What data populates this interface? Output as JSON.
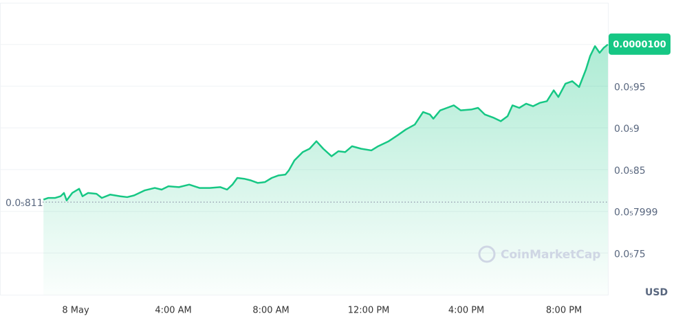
{
  "chart_data": {
    "type": "line",
    "color": "#16c784",
    "x": [
      -1.32,
      -1.13,
      -0.85,
      -0.62,
      -0.48,
      -0.37,
      -0.14,
      0.14,
      0.28,
      0.51,
      0.85,
      1.07,
      1.41,
      1.83,
      2.11,
      2.39,
      2.82,
      3.24,
      3.52,
      3.8,
      4.23,
      4.65,
      5.07,
      5.49,
      5.92,
      6.2,
      6.42,
      6.62,
      6.9,
      7.18,
      7.46,
      7.75,
      8.03,
      8.31,
      8.59,
      8.73,
      8.96,
      9.3,
      9.58,
      9.86,
      10.14,
      10.48,
      10.76,
      11.04,
      11.32,
      11.69,
      12.11,
      12.39,
      12.82,
      13.18,
      13.52,
      13.89,
      14.23,
      14.51,
      14.65,
      14.93,
      15.21,
      15.49,
      15.77,
      16.2,
      16.48,
      16.76,
      17.13,
      17.41,
      17.69,
      17.89,
      18.17,
      18.45,
      18.73,
      19.01,
      19.3,
      19.58,
      19.77,
      20.06,
      20.34,
      20.62,
      20.9,
      21.07,
      21.27,
      21.46,
      21.63,
      21.8
    ],
    "values": [
      8.14e-06,
      8.16e-06,
      8.16e-06,
      8.18e-06,
      8.22e-06,
      8.13e-06,
      8.22e-06,
      8.27e-06,
      8.18e-06,
      8.22e-06,
      8.21e-06,
      8.16e-06,
      8.2e-06,
      8.18e-06,
      8.17e-06,
      8.19e-06,
      8.25e-06,
      8.28e-06,
      8.26e-06,
      8.3e-06,
      8.29e-06,
      8.32e-06,
      8.28e-06,
      8.28e-06,
      8.29e-06,
      8.26e-06,
      8.32e-06,
      8.4e-06,
      8.39e-06,
      8.37e-06,
      8.34e-06,
      8.35e-06,
      8.4e-06,
      8.43e-06,
      8.44e-06,
      8.49e-06,
      8.61e-06,
      8.71e-06,
      8.75e-06,
      8.84e-06,
      8.75e-06,
      8.66e-06,
      8.72e-06,
      8.71e-06,
      8.78e-06,
      8.75e-06,
      8.73e-06,
      8.78e-06,
      8.84e-06,
      8.91e-06,
      8.98e-06,
      9.04e-06,
      9.19e-06,
      9.16e-06,
      9.11e-06,
      9.21e-06,
      9.24e-06,
      9.27e-06,
      9.21e-06,
      9.22e-06,
      9.24e-06,
      9.16e-06,
      9.12e-06,
      9.08e-06,
      9.14e-06,
      9.27e-06,
      9.24e-06,
      9.29e-06,
      9.26e-06,
      9.3e-06,
      9.32e-06,
      9.45e-06,
      9.37e-06,
      9.53e-06,
      9.56e-06,
      9.49e-06,
      9.7e-06,
      9.86e-06,
      9.98e-06,
      9.9e-06,
      9.96e-06,
      1e-05
    ],
    "xlim": [
      -3.1,
      21.8
    ],
    "xticks": [
      {
        "value": 0,
        "label": "8 May"
      },
      {
        "value": 4,
        "label": "4:00 AM"
      },
      {
        "value": 8,
        "label": "8:00 AM"
      },
      {
        "value": 12,
        "label": "12:00 PM"
      },
      {
        "value": 16,
        "label": "4:00 PM"
      },
      {
        "value": 20,
        "label": "8:00 PM"
      }
    ],
    "ylim": [
      7e-06,
      1.05e-05
    ],
    "yticks": [
      {
        "value": 9.5e-06,
        "label": "0.0₅95"
      },
      {
        "value": 9e-06,
        "label": "0.0₅9"
      },
      {
        "value": 8.5e-06,
        "label": "0.0₅85"
      },
      {
        "value": 7.999e-06,
        "label": "0.0₅7999"
      },
      {
        "value": 7.5e-06,
        "label": "0.0₅75"
      }
    ],
    "grid": true,
    "last_price": {
      "value": 1e-05,
      "label": "0.0000100"
    },
    "reference_line": {
      "value": 8.11e-06,
      "label": "0.0₅811"
    },
    "y_axis_unit": "USD",
    "watermark": "CoinMarketCap"
  }
}
